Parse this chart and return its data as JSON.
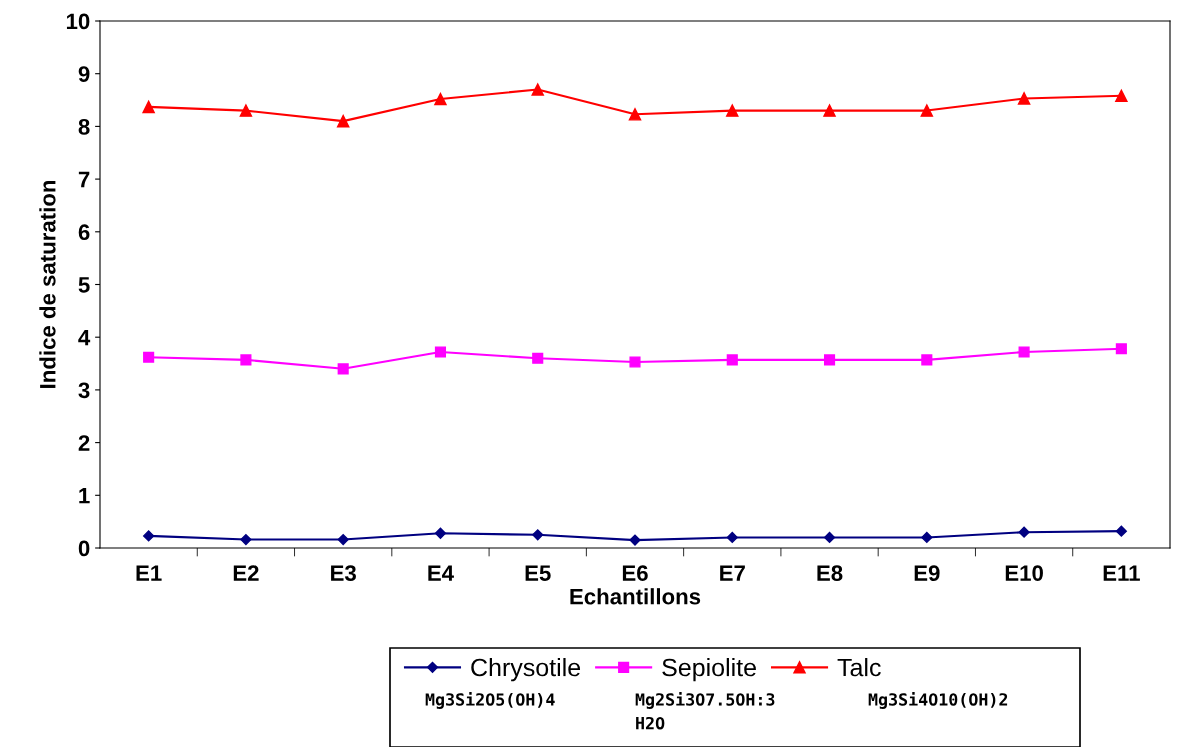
{
  "chart_data": {
    "type": "line",
    "xlabel": "Echantillons",
    "ylabel": "Indice de saturation",
    "categories": [
      "E1",
      "E2",
      "E3",
      "E4",
      "E5",
      "E6",
      "E7",
      "E8",
      "E9",
      "E10",
      "E11"
    ],
    "series": [
      {
        "name": "Chrysotile",
        "color": "#000080",
        "marker": "diamond",
        "values": [
          0.23,
          0.16,
          0.16,
          0.28,
          0.25,
          0.15,
          0.2,
          0.2,
          0.2,
          0.3,
          0.32
        ]
      },
      {
        "name": "Sepiolite",
        "color": "#ff00ff",
        "marker": "square",
        "values": [
          3.62,
          3.57,
          3.4,
          3.72,
          3.6,
          3.53,
          3.57,
          3.57,
          3.57,
          3.72,
          3.78
        ]
      },
      {
        "name": "Talc",
        "color": "#ff0000",
        "marker": "triangle",
        "values": [
          8.37,
          8.3,
          8.1,
          8.52,
          8.7,
          8.23,
          8.3,
          8.3,
          8.3,
          8.53,
          8.58
        ]
      }
    ],
    "ylim": [
      0,
      10
    ],
    "yticks": [
      0,
      1,
      2,
      3,
      4,
      5,
      6,
      7,
      8,
      9,
      10
    ],
    "grid": false,
    "legend": "bottom",
    "annotations": [
      "Mg3Si2O5(OH)4",
      "Mg2Si3O7.5OH:3\nH2O",
      "Mg3Si4O10(OH)2"
    ]
  }
}
